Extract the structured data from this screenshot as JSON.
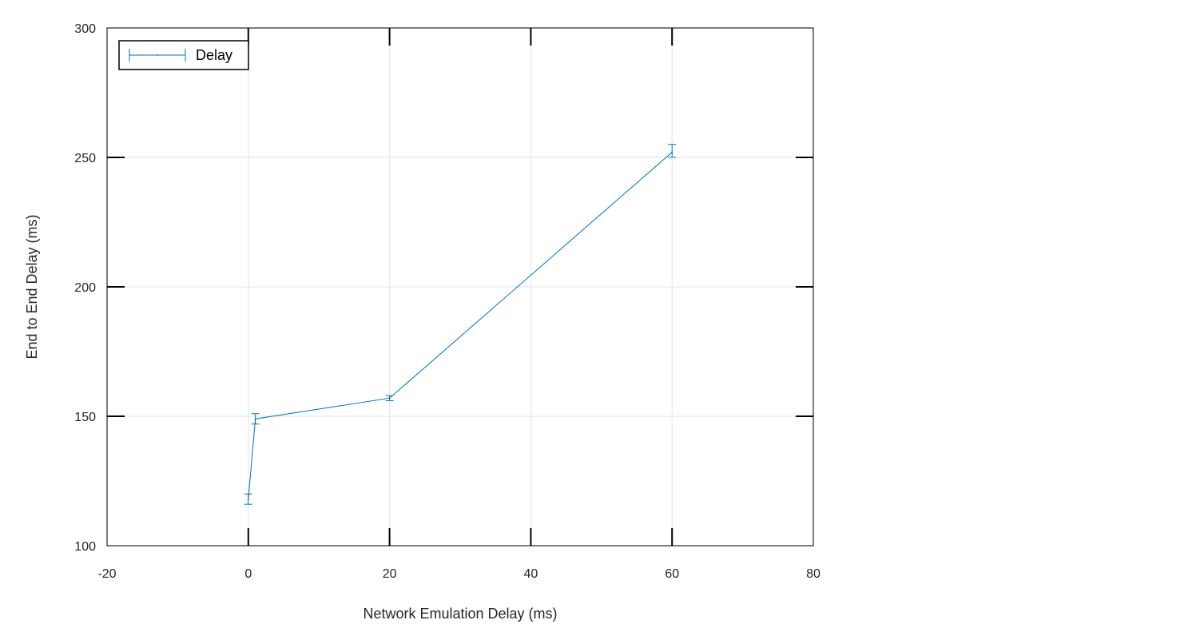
{
  "chart_data": {
    "type": "line",
    "title": "",
    "xlabel": "Network Emulation Delay (ms)",
    "ylabel": "End to End Delay (ms)",
    "xlim": [
      -20,
      80
    ],
    "ylim": [
      100,
      300
    ],
    "xticks": [
      -20,
      0,
      20,
      40,
      60,
      80
    ],
    "yticks": [
      100,
      150,
      200,
      250,
      300
    ],
    "xtick_labels": [
      "-20",
      "0",
      "20",
      "40",
      "60",
      "80"
    ],
    "ytick_labels": [
      "100",
      "150",
      "200",
      "250",
      "300"
    ],
    "grid": true,
    "legend": {
      "placement": "top-left",
      "entries": [
        "Delay"
      ]
    },
    "series": [
      {
        "name": "Delay",
        "color": "#0072bd",
        "x": [
          0,
          1,
          20,
          60
        ],
        "y": [
          118,
          149,
          157,
          252
        ],
        "error_low": [
          2,
          2,
          1,
          2
        ],
        "error_high": [
          2,
          2,
          1,
          3
        ]
      }
    ]
  }
}
